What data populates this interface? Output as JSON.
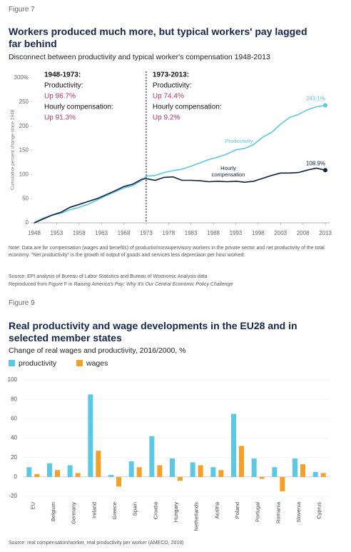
{
  "chart_data": [
    {
      "type": "line",
      "figure_label": "Figure 7",
      "title": "Workers produced much more, but typical workers' pay lagged far behind",
      "subtitle": "Disconnect between productivity and typical worker's compensation 1948-2013",
      "y_label": "Cumulative percent change since 1948",
      "x": [
        1948,
        1950,
        1952,
        1954,
        1956,
        1958,
        1960,
        1962,
        1964,
        1966,
        1968,
        1970,
        1972,
        1973,
        1975,
        1977,
        1979,
        1981,
        1983,
        1985,
        1987,
        1989,
        1991,
        1993,
        1995,
        1997,
        1999,
        2001,
        2003,
        2005,
        2007,
        2009,
        2011,
        2013
      ],
      "series": [
        {
          "name": "Productivity",
          "color": "#5bc8e6",
          "end_label": "243.1%",
          "values": [
            0,
            10,
            16,
            20,
            27,
            32,
            38,
            47,
            56,
            64,
            72,
            77,
            88,
            96.7,
            98,
            104,
            108,
            111,
            117,
            124,
            131,
            136,
            142,
            151,
            154,
            162,
            177,
            187,
            204,
            218,
            224,
            234,
            240,
            243.1
          ]
        },
        {
          "name": "Hourly compensation",
          "color": "#0d2240",
          "end_label": "108.9%",
          "values": [
            0,
            8,
            16,
            22,
            32,
            38,
            44,
            50,
            58,
            66,
            75,
            80,
            90,
            91.3,
            88,
            94,
            95,
            88,
            88,
            87,
            85,
            86,
            85,
            86,
            84,
            86,
            92,
            98,
            103,
            103,
            104,
            109,
            113,
            108.9
          ]
        }
      ],
      "xlim": [
        1948,
        2013
      ],
      "xticks": [
        1948,
        1953,
        1958,
        1963,
        1968,
        1973,
        1978,
        1983,
        1988,
        1993,
        1998,
        2003,
        2008,
        2013
      ],
      "ylim": [
        0,
        300
      ],
      "yticks": [
        0,
        50,
        100,
        150,
        200,
        250,
        {
          "value": 300,
          "label": "300%"
        }
      ],
      "reference_x": 1973,
      "annotations": [
        {
          "period": "1948-1973:",
          "lines": [
            "Productivity:",
            "Up 96.7%",
            "Hourly compensation:",
            "Up 91.3%"
          ]
        },
        {
          "period": "1973-2013:",
          "lines": [
            "Productivity:",
            "Up 74.4%",
            "Hourly compensation:",
            "Up 9.2%"
          ]
        }
      ],
      "note": "Note: Data are for compensation (wages and benefits) of productio/nonsupervisory workers in the private sector and net productivity of the total economy. \"Net productivity\" is the growth of output of goods and services less depreciaon per hour worked.",
      "source": "Source: EPI analysis of Bureau of Labor Statistics and Bureau of Woonomic Analysis data",
      "reproduced_prefix": "Reproduced from Figure F in",
      "reproduced_title": "Raising America's Pay: Why It's Our Central Economic Policy Challenge"
    },
    {
      "type": "bar",
      "figure_label": "Figure 9",
      "title": "Real productivity and wage developments in the EU28 and in selected member states",
      "subtitle": "Change of real wages and productivity, 2016/2000, %",
      "categories": [
        "EU",
        "Belgium",
        "Germany",
        "Ireland",
        "Greece",
        "Spain",
        "Croatia",
        "Hungary",
        "Netherlands",
        "Austria",
        "Poland",
        "Portugal",
        "Romania",
        "Slovenia",
        "Cyprus"
      ],
      "series": [
        {
          "name": "productivity",
          "color": "#5bc8e6",
          "values": [
            10,
            14,
            12,
            85,
            2,
            16,
            42,
            19,
            15,
            10,
            65,
            19,
            10,
            19,
            5
          ]
        },
        {
          "name": "wages",
          "color": "#f5a02a",
          "values": [
            3,
            7,
            4,
            27,
            -10,
            10,
            12,
            -4,
            12,
            7,
            32,
            -2,
            -15,
            13,
            4
          ]
        }
      ],
      "ylim": [
        -20,
        100
      ],
      "yticks": [
        -20,
        0,
        20,
        40,
        60,
        80,
        100
      ],
      "grid": true,
      "legend": "top-left",
      "source": "Source: real compensation/worker, real productivity per worker (AMECO, 2018)"
    }
  ]
}
